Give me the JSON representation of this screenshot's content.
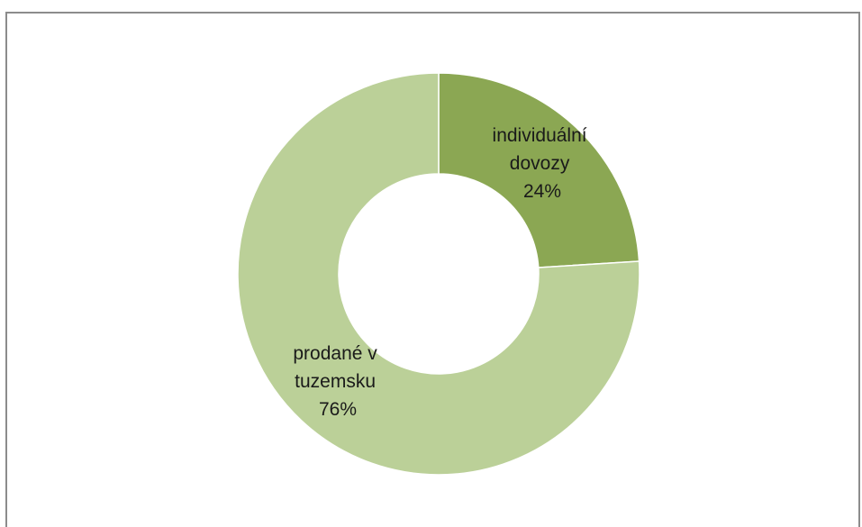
{
  "chart_data": {
    "type": "pie",
    "subtype": "donut",
    "title": "",
    "legend": "none",
    "slices": [
      {
        "label_lines": [
          "individuální",
          "dovozy"
        ],
        "value": 24,
        "value_label": "24%",
        "color": "#8ba753"
      },
      {
        "label_lines": [
          "prodané v",
          "tuzemsku"
        ],
        "value": 76,
        "value_label": "76%",
        "color": "#bbd098"
      }
    ]
  }
}
